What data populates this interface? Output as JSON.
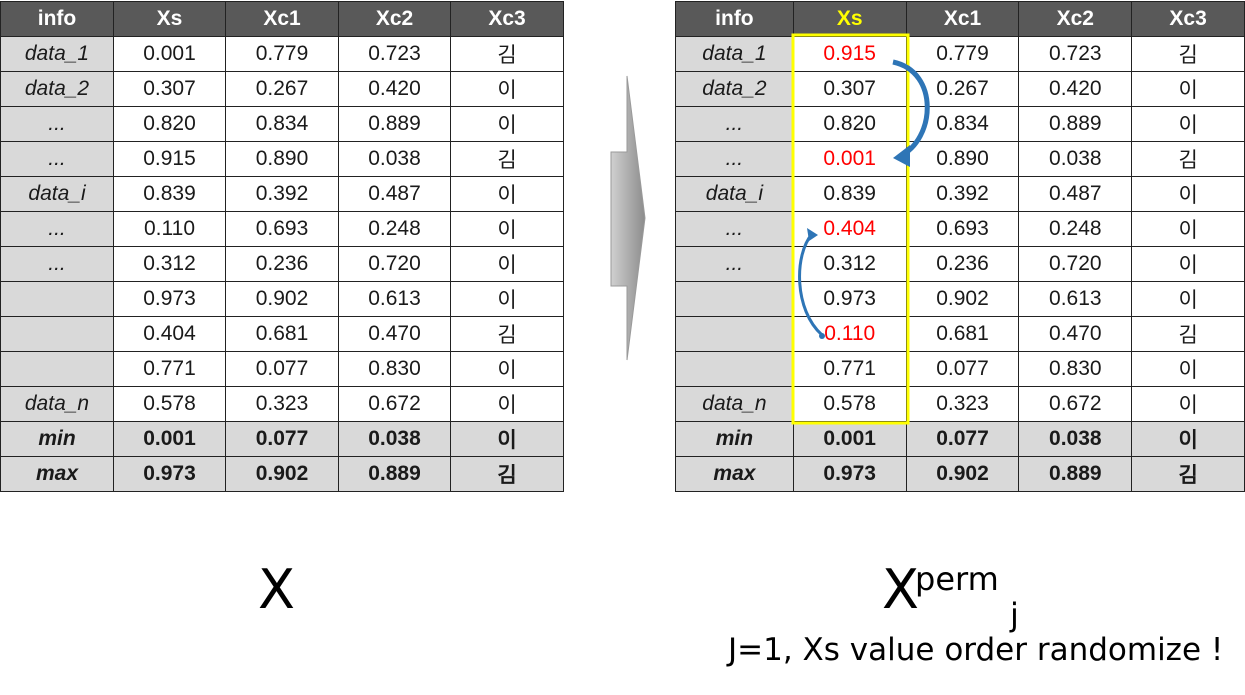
{
  "headers": [
    "info",
    "Xs",
    "Xc1",
    "Xc2",
    "Xc3"
  ],
  "original": {
    "rows": [
      {
        "info": "data_1",
        "xs": "0.001",
        "xc1": "0.779",
        "xc2": "0.723",
        "xc3": "김"
      },
      {
        "info": "data_2",
        "xs": "0.307",
        "xc1": "0.267",
        "xc2": "0.420",
        "xc3": "이"
      },
      {
        "info": "...",
        "xs": "0.820",
        "xc1": "0.834",
        "xc2": "0.889",
        "xc3": "이"
      },
      {
        "info": "...",
        "xs": "0.915",
        "xc1": "0.890",
        "xc2": "0.038",
        "xc3": "김"
      },
      {
        "info": "data_i",
        "xs": "0.839",
        "xc1": "0.392",
        "xc2": "0.487",
        "xc3": "이"
      },
      {
        "info": "...",
        "xs": "0.110",
        "xc1": "0.693",
        "xc2": "0.248",
        "xc3": "이"
      },
      {
        "info": "...",
        "xs": "0.312",
        "xc1": "0.236",
        "xc2": "0.720",
        "xc3": "이"
      },
      {
        "info": "",
        "xs": "0.973",
        "xc1": "0.902",
        "xc2": "0.613",
        "xc3": "이"
      },
      {
        "info": "",
        "xs": "0.404",
        "xc1": "0.681",
        "xc2": "0.470",
        "xc3": "김"
      },
      {
        "info": "",
        "xs": "0.771",
        "xc1": "0.077",
        "xc2": "0.830",
        "xc3": "이"
      },
      {
        "info": "data_n",
        "xs": "0.578",
        "xc1": "0.323",
        "xc2": "0.672",
        "xc3": "이"
      }
    ],
    "min": {
      "info": "min",
      "xs": "0.001",
      "xc1": "0.077",
      "xc2": "0.038",
      "xc3": "이"
    },
    "max": {
      "info": "max",
      "xs": "0.973",
      "xc1": "0.902",
      "xc2": "0.889",
      "xc3": "김"
    }
  },
  "permuted": {
    "rows": [
      {
        "info": "data_1",
        "xs": "0.915",
        "xc1": "0.779",
        "xc2": "0.723",
        "xc3": "김",
        "changed": true
      },
      {
        "info": "data_2",
        "xs": "0.307",
        "xc1": "0.267",
        "xc2": "0.420",
        "xc3": "이",
        "changed": false
      },
      {
        "info": "...",
        "xs": "0.820",
        "xc1": "0.834",
        "xc2": "0.889",
        "xc3": "이",
        "changed": false
      },
      {
        "info": "...",
        "xs": "0.001",
        "xc1": "0.890",
        "xc2": "0.038",
        "xc3": "김",
        "changed": true
      },
      {
        "info": "data_i",
        "xs": "0.839",
        "xc1": "0.392",
        "xc2": "0.487",
        "xc3": "이",
        "changed": false
      },
      {
        "info": "...",
        "xs": "0.404",
        "xc1": "0.693",
        "xc2": "0.248",
        "xc3": "이",
        "changed": true
      },
      {
        "info": "...",
        "xs": "0.312",
        "xc1": "0.236",
        "xc2": "0.720",
        "xc3": "이",
        "changed": false
      },
      {
        "info": "",
        "xs": "0.973",
        "xc1": "0.902",
        "xc2": "0.613",
        "xc3": "이",
        "changed": false
      },
      {
        "info": "",
        "xs": "0.110",
        "xc1": "0.681",
        "xc2": "0.470",
        "xc3": "김",
        "changed": true
      },
      {
        "info": "",
        "xs": "0.771",
        "xc1": "0.077",
        "xc2": "0.830",
        "xc3": "이",
        "changed": false
      },
      {
        "info": "data_n",
        "xs": "0.578",
        "xc1": "0.323",
        "xc2": "0.672",
        "xc3": "이",
        "changed": false
      }
    ],
    "min": {
      "info": "min",
      "xs": "0.001",
      "xc1": "0.077",
      "xc2": "0.038",
      "xc3": "이"
    },
    "max": {
      "info": "max",
      "xs": "0.973",
      "xc1": "0.902",
      "xc2": "0.889",
      "xc3": "김"
    }
  },
  "labels": {
    "left": "X",
    "right_base": "X",
    "right_sup": "perm",
    "right_sub": "j",
    "caption": "J=1, Xs value order randomize !"
  },
  "colors": {
    "header_bg": "#595959",
    "info_bg": "#d9d9d9",
    "highlight_header": "#ffff00",
    "highlight_box": "#ffff00",
    "changed_value": "#ff0000",
    "swap_arrow": "#2e75b6",
    "big_arrow": "#a6a6a6"
  }
}
